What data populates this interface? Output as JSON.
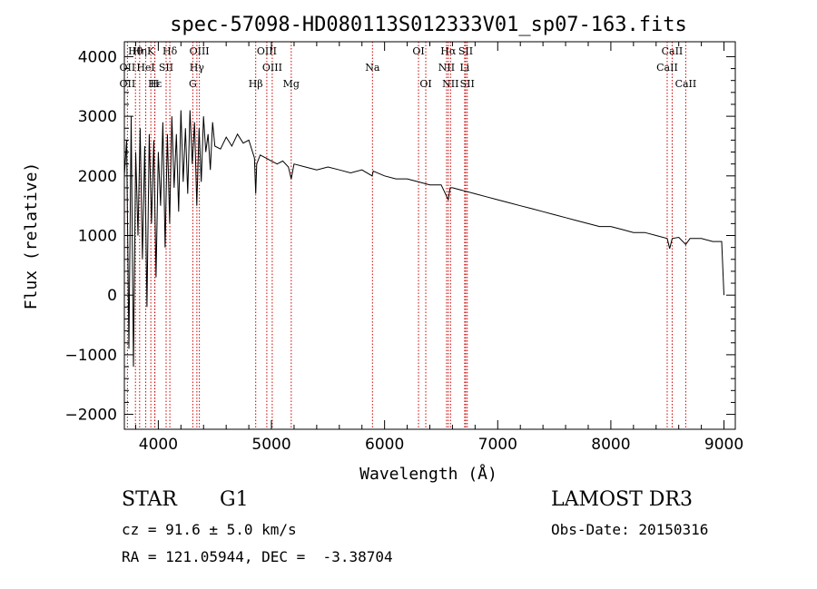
{
  "chart_data": {
    "type": "line",
    "title": "spec-57098-HD080113S012333V01_sp07-163.fits",
    "xlabel": "Wavelength (Å)",
    "ylabel": "Flux (relative)",
    "xlim": [
      3700,
      9100
    ],
    "ylim": [
      -2250,
      4250
    ],
    "xticks": [
      4000,
      5000,
      6000,
      7000,
      8000,
      9000
    ],
    "xticklabels": [
      "4000",
      "5000",
      "6000",
      "7000",
      "8000",
      "9000"
    ],
    "yticks": [
      -2000,
      -1000,
      0,
      1000,
      2000,
      3000,
      4000
    ],
    "yticklabels": [
      "−2000",
      "−1000",
      "0",
      "1000",
      "2000",
      "3000",
      "4000"
    ],
    "series": [
      {
        "name": "spectrum",
        "x": [
          3700,
          3720,
          3740,
          3760,
          3780,
          3800,
          3820,
          3840,
          3860,
          3880,
          3900,
          3920,
          3940,
          3960,
          3980,
          4000,
          4020,
          4040,
          4060,
          4080,
          4100,
          4120,
          4140,
          4160,
          4180,
          4200,
          4220,
          4240,
          4260,
          4280,
          4300,
          4320,
          4340,
          4360,
          4380,
          4400,
          4420,
          4440,
          4460,
          4480,
          4500,
          4550,
          4600,
          4650,
          4700,
          4750,
          4800,
          4850,
          4861,
          4870,
          4900,
          4950,
          5000,
          5050,
          5100,
          5150,
          5175,
          5200,
          5300,
          5400,
          5500,
          5600,
          5700,
          5800,
          5890,
          5900,
          6000,
          6100,
          6200,
          6300,
          6400,
          6500,
          6563,
          6580,
          6600,
          6700,
          6800,
          6900,
          7000,
          7100,
          7200,
          7300,
          7400,
          7500,
          7600,
          7700,
          7800,
          7900,
          8000,
          8100,
          8200,
          8300,
          8400,
          8498,
          8520,
          8542,
          8600,
          8662,
          8700,
          8800,
          8900,
          8980,
          9000
        ],
        "y": [
          2000,
          2600,
          -900,
          3000,
          -1200,
          2400,
          1000,
          2800,
          600,
          2500,
          -200,
          2700,
          1200,
          2600,
          300,
          2400,
          1500,
          2900,
          800,
          2700,
          1200,
          3000,
          1800,
          2700,
          1400,
          3100,
          1900,
          2800,
          1700,
          3100,
          2200,
          2900,
          1500,
          2800,
          1900,
          3000,
          2400,
          2700,
          2100,
          2900,
          2500,
          2450,
          2650,
          2500,
          2700,
          2550,
          2600,
          2300,
          1700,
          2200,
          2350,
          2300,
          2250,
          2200,
          2250,
          2150,
          1950,
          2200,
          2150,
          2100,
          2150,
          2100,
          2050,
          2100,
          2000,
          2080,
          2000,
          1950,
          1950,
          1900,
          1850,
          1850,
          1600,
          1800,
          1800,
          1750,
          1700,
          1650,
          1600,
          1550,
          1500,
          1450,
          1400,
          1350,
          1300,
          1250,
          1200,
          1150,
          1150,
          1100,
          1050,
          1050,
          1000,
          950,
          780,
          950,
          970,
          850,
          950,
          950,
          900,
          900,
          0
        ]
      }
    ],
    "annotations": [
      {
        "label": "Hθ",
        "x": 3798,
        "row": 1
      },
      {
        "label": "Hη",
        "x": 3835,
        "row": 1
      },
      {
        "label": "K",
        "x": 3934,
        "row": 1
      },
      {
        "label": "Hδ",
        "x": 4102,
        "row": 1
      },
      {
        "label": "OIII",
        "x": 4363,
        "row": 1
      },
      {
        "label": "OIII",
        "x": 4959,
        "row": 1
      },
      {
        "label": "OI",
        "x": 6300,
        "row": 1
      },
      {
        "label": "Hα",
        "x": 6563,
        "row": 1
      },
      {
        "label": "SII",
        "x": 6717,
        "row": 1
      },
      {
        "label": "CaII",
        "x": 8542,
        "row": 1
      },
      {
        "label": "OII",
        "x": 3727,
        "row": 2
      },
      {
        "label": "HeI",
        "x": 3889,
        "row": 2
      },
      {
        "label": "SII",
        "x": 4069,
        "row": 2
      },
      {
        "label": "Hγ",
        "x": 4341,
        "row": 2
      },
      {
        "label": "OIII",
        "x": 5007,
        "row": 2
      },
      {
        "label": "Na",
        "x": 5893,
        "row": 2
      },
      {
        "label": "NII",
        "x": 6548,
        "row": 2
      },
      {
        "label": "Li",
        "x": 6708,
        "row": 2
      },
      {
        "label": "CaII",
        "x": 8498,
        "row": 2
      },
      {
        "label": "OII",
        "x": 3727,
        "row": 3
      },
      {
        "label": "Hε",
        "x": 3970,
        "row": 3
      },
      {
        "label": "H",
        "x": 3968,
        "row": 3
      },
      {
        "label": "G",
        "x": 4305,
        "row": 3
      },
      {
        "label": "Hβ",
        "x": 4861,
        "row": 3
      },
      {
        "label": "Mg",
        "x": 5175,
        "row": 3
      },
      {
        "label": "OI",
        "x": 6364,
        "row": 3
      },
      {
        "label": "NII",
        "x": 6583,
        "row": 3
      },
      {
        "label": "SII",
        "x": 6731,
        "row": 3
      },
      {
        "label": "CaII",
        "x": 8662,
        "row": 3
      }
    ],
    "line_color": "#000000",
    "marker_color": "#cc0000"
  },
  "info": {
    "class": "STAR",
    "subclass": "G1",
    "survey": "LAMOST DR3",
    "redshift": "cz = 91.6 ± 5.0 km/s",
    "obs_date": "Obs-Date: 20150316",
    "coords": "RA = 121.05944, DEC =  -3.38704"
  }
}
